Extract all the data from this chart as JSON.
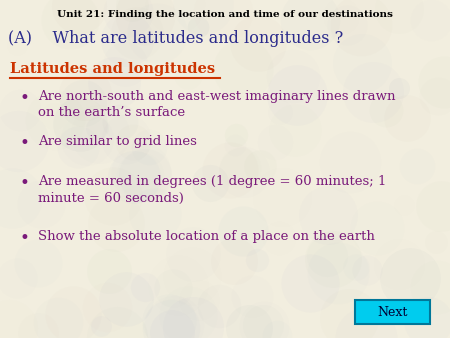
{
  "title": "Unit 21: Finding the location and time of our destinations",
  "subtitle": "(A)    What are latitudes and longitudes ?",
  "section_title": "Latitudes and longitudes",
  "bullets": [
    "Are north-south and east-west imaginary lines drawn\non the earth’s surface",
    "Are similar to grid lines",
    "Are measured in degrees (1 degree = 60 minutes; 1\nminute = 60 seconds)",
    "Show the absolute location of a place on the earth"
  ],
  "title_color": "#000000",
  "subtitle_color": "#2b2b8b",
  "section_color": "#cc3300",
  "bullet_color": "#7a1a7a",
  "bg_color": "#f0ede0",
  "next_btn_color": "#00ccee",
  "next_btn_text": "Next",
  "next_btn_text_color": "#000033"
}
